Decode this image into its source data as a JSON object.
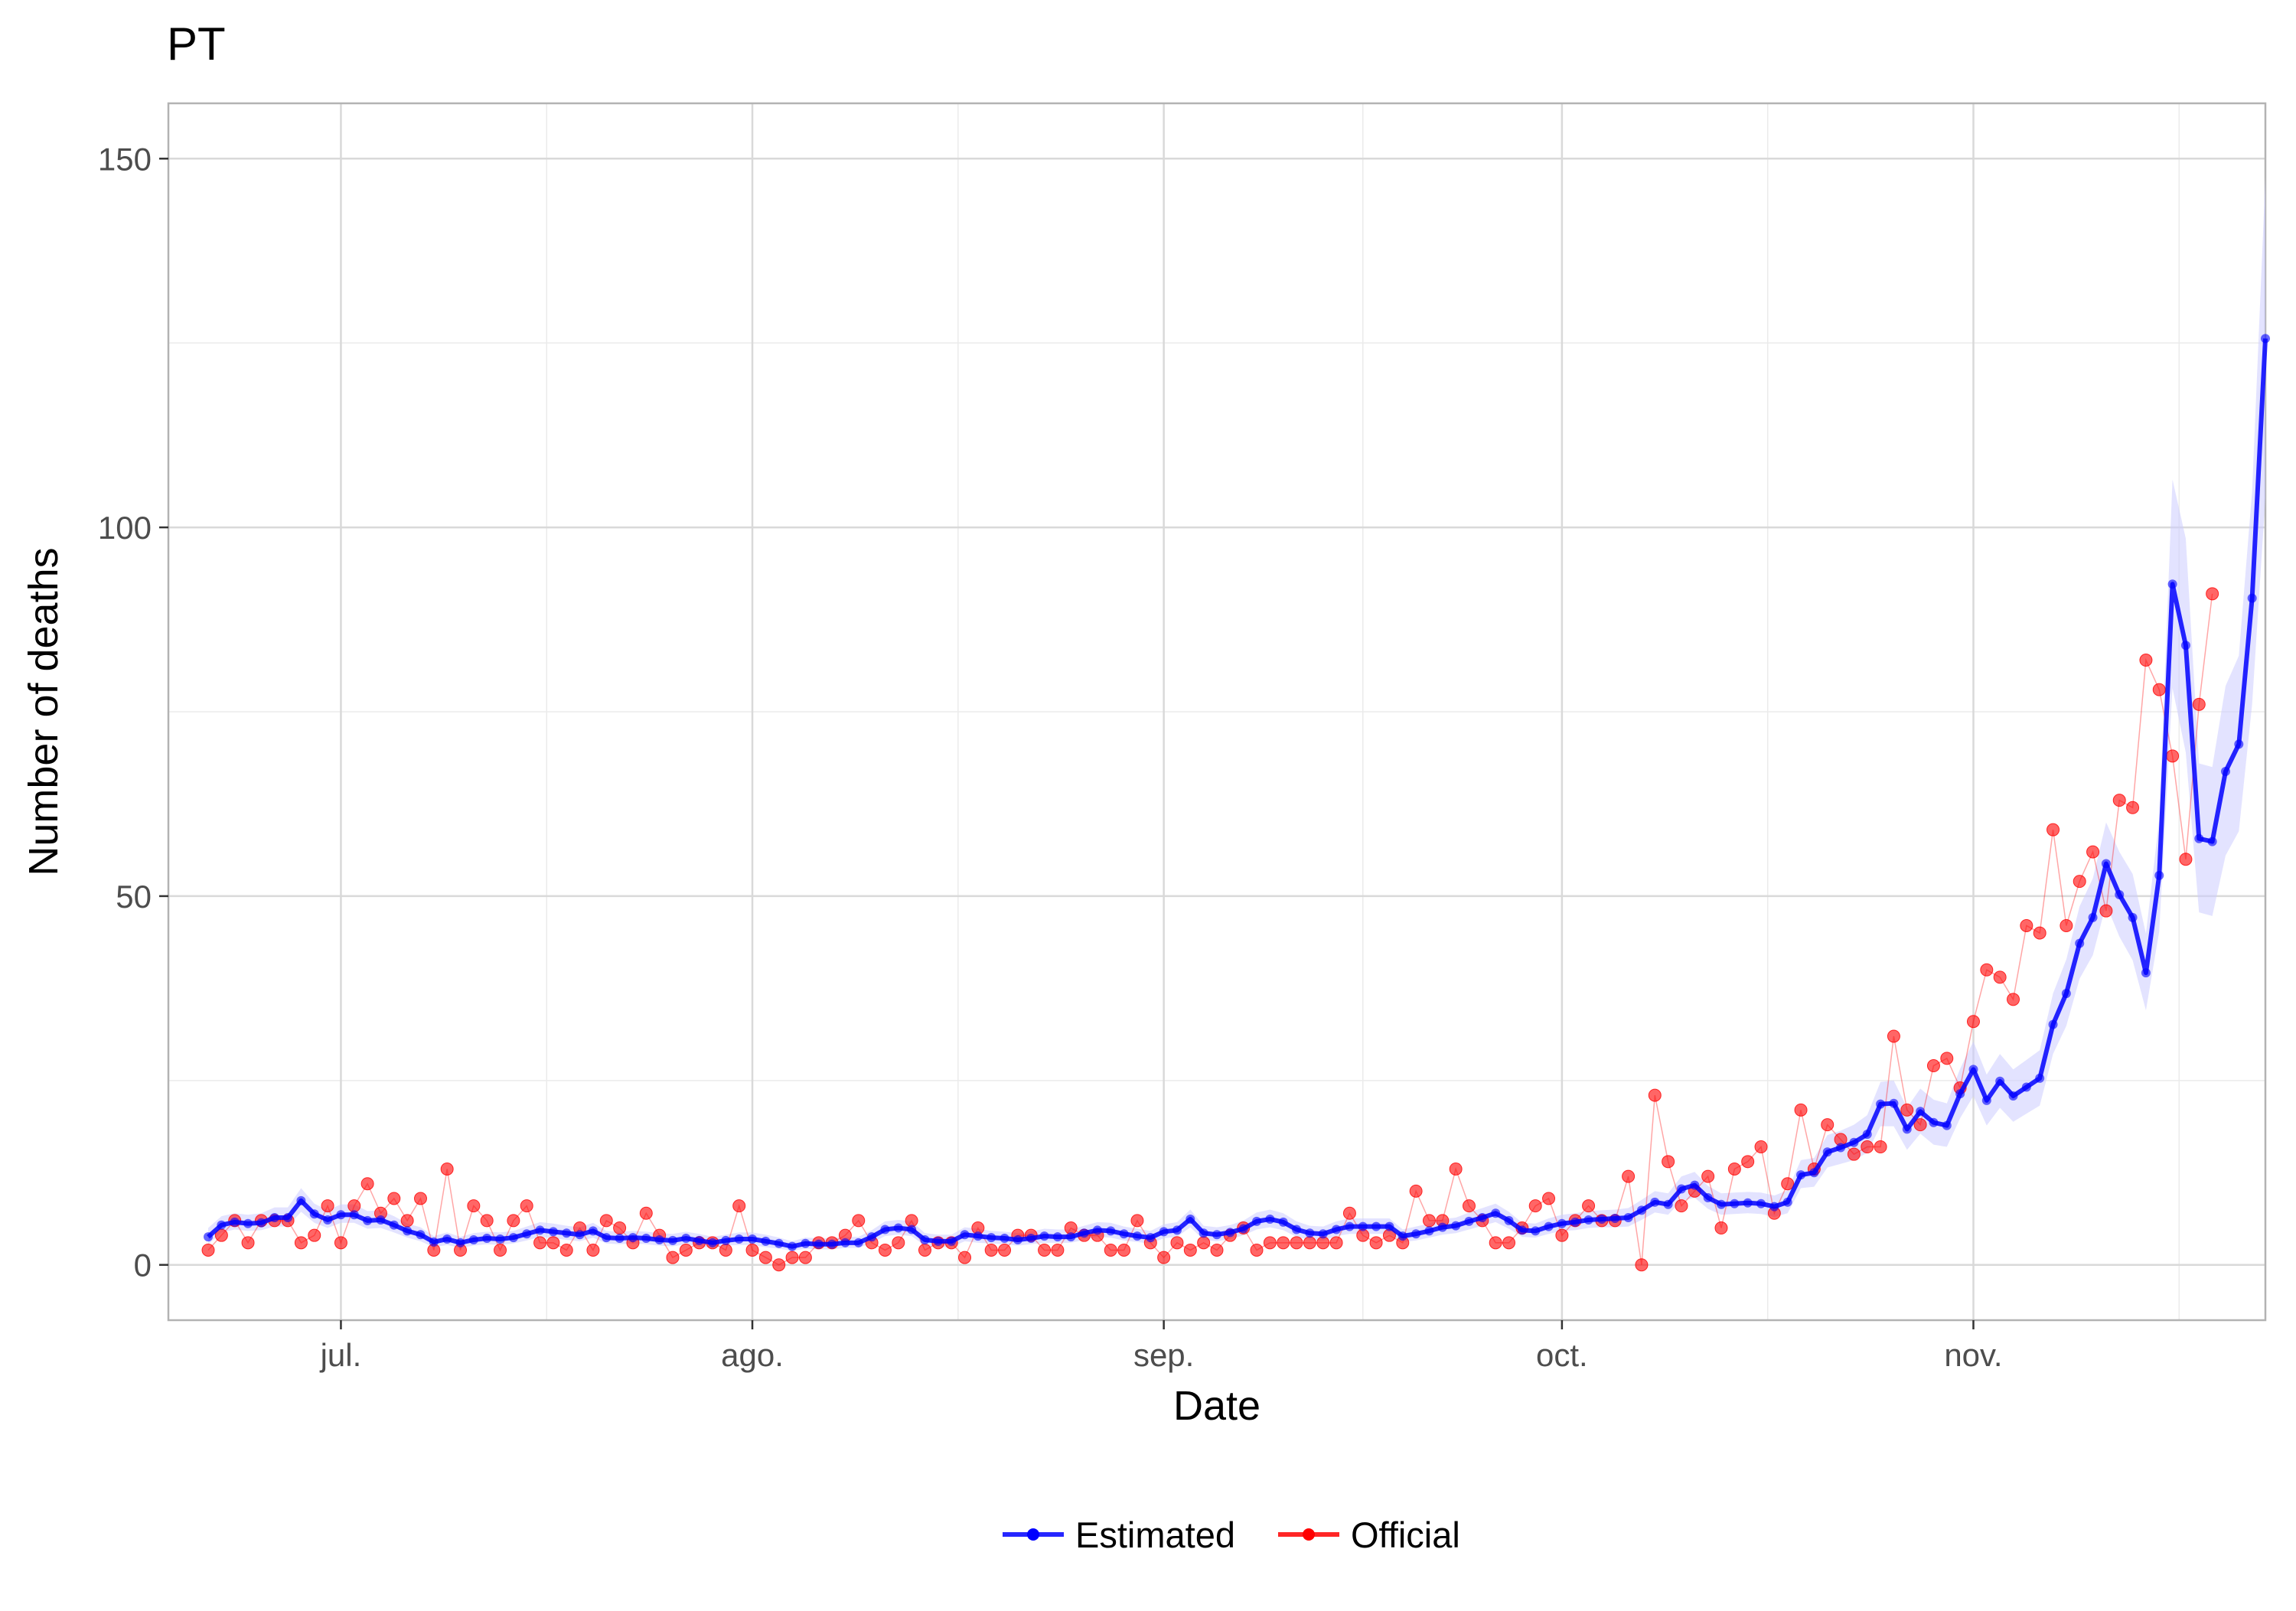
{
  "chart_data": {
    "type": "line",
    "title": "PT",
    "xlabel": "Date",
    "ylabel": "Number of deaths",
    "x_axis_type": "date",
    "x_start": "2020-06-21",
    "xlim": [
      "2020-06-18",
      "2020-11-23"
    ],
    "ylim": [
      -7.5,
      157.5
    ],
    "grid": true,
    "legend_position": "bottom",
    "x_ticks": [
      {
        "date": "2020-07-01",
        "label": "jul."
      },
      {
        "date": "2020-08-01",
        "label": "ago."
      },
      {
        "date": "2020-09-01",
        "label": "sep."
      },
      {
        "date": "2020-10-01",
        "label": "oct."
      },
      {
        "date": "2020-11-01",
        "label": "nov."
      }
    ],
    "y_ticks": [
      0,
      50,
      100,
      150
    ],
    "series": [
      {
        "name": "Estimated",
        "color": "#0000ff",
        "band_color": "#ccccff",
        "values": [
          3.8,
          5.4,
          5.8,
          5.6,
          5.7,
          6.4,
          6.4,
          8.7,
          6.9,
          6.1,
          6.8,
          6.8,
          6.0,
          6.1,
          5.4,
          4.6,
          4.1,
          3.1,
          3.5,
          3.0,
          3.4,
          3.6,
          3.5,
          3.7,
          4.2,
          4.7,
          4.5,
          4.3,
          4.1,
          4.6,
          3.7,
          3.6,
          3.7,
          3.6,
          3.4,
          3.3,
          3.6,
          3.3,
          3.0,
          3.3,
          3.5,
          3.5,
          3.2,
          2.9,
          2.5,
          2.9,
          2.8,
          2.8,
          3.0,
          3.0,
          3.8,
          4.8,
          5.0,
          4.8,
          3.4,
          3.2,
          3.2,
          4.1,
          3.9,
          3.7,
          3.6,
          3.4,
          3.6,
          3.9,
          3.8,
          3.8,
          4.3,
          4.7,
          4.6,
          4.2,
          3.9,
          3.7,
          4.5,
          4.7,
          6.2,
          4.3,
          4.1,
          4.4,
          4.9,
          5.9,
          6.2,
          5.8,
          4.8,
          4.3,
          4.2,
          4.8,
          5.2,
          5.2,
          5.2,
          5.2,
          3.9,
          4.2,
          4.6,
          5.1,
          5.3,
          5.9,
          6.4,
          7.0,
          6.0,
          4.7,
          4.6,
          5.2,
          5.6,
          5.8,
          6.1,
          6.2,
          6.3,
          6.4,
          7.4,
          8.5,
          8.2,
          10.3,
          10.8,
          9.1,
          8.2,
          8.3,
          8.4,
          8.3,
          7.9,
          8.5,
          12.2,
          12.5,
          15.3,
          15.9,
          16.6,
          17.7,
          21.8,
          21.9,
          18.4,
          20.8,
          19.3,
          18.9,
          23.2,
          26.5,
          22.3,
          24.9,
          22.9,
          24.1,
          25.3,
          32.6,
          36.8,
          43.6,
          47.1,
          54.4,
          50.2,
          47.1,
          39.6,
          52.8,
          92.3,
          84.0,
          57.8,
          57.4,
          66.9,
          70.6,
          90.4,
          125.6
        ],
        "lower": [
          2.8,
          4.4,
          4.8,
          4.6,
          4.7,
          5.2,
          5.2,
          7.2,
          5.7,
          5.0,
          5.7,
          5.7,
          4.9,
          5.0,
          4.4,
          3.7,
          3.2,
          2.4,
          2.7,
          2.3,
          2.6,
          2.8,
          2.7,
          2.9,
          3.3,
          3.8,
          3.6,
          3.4,
          3.2,
          3.7,
          2.9,
          2.8,
          2.9,
          2.8,
          2.6,
          2.5,
          2.8,
          2.5,
          2.3,
          2.6,
          2.7,
          2.7,
          2.4,
          2.2,
          1.9,
          2.2,
          2.1,
          2.1,
          2.3,
          2.3,
          3.0,
          3.9,
          4.1,
          3.9,
          2.6,
          2.4,
          2.4,
          3.2,
          3.0,
          2.9,
          2.8,
          2.6,
          2.8,
          3.0,
          3.0,
          3.0,
          3.4,
          3.8,
          3.7,
          3.3,
          3.1,
          2.9,
          3.6,
          3.8,
          5.1,
          3.4,
          3.2,
          3.5,
          4.0,
          4.8,
          5.1,
          4.7,
          3.8,
          3.4,
          3.3,
          3.9,
          4.2,
          4.2,
          4.2,
          4.2,
          3.1,
          3.3,
          3.7,
          4.1,
          4.3,
          4.8,
          5.3,
          5.8,
          4.9,
          3.8,
          3.7,
          4.2,
          4.6,
          4.7,
          5.0,
          5.1,
          5.1,
          5.2,
          6.1,
          7.1,
          6.8,
          8.7,
          9.1,
          7.6,
          6.8,
          6.9,
          7.0,
          6.9,
          6.5,
          7.0,
          10.4,
          10.6,
          13.2,
          13.7,
          14.2,
          15.2,
          18.8,
          18.8,
          15.6,
          17.8,
          16.3,
          16.0,
          19.9,
          22.9,
          18.9,
          21.3,
          19.4,
          20.5,
          21.6,
          28.6,
          32.4,
          38.8,
          42.0,
          48.9,
          44.5,
          41.3,
          34.5,
          45.2,
          78.2,
          69.5,
          47.8,
          47.3,
          55.5,
          58.8,
          76.0,
          104.0
        ],
        "upper": [
          5.0,
          6.6,
          7.0,
          6.8,
          7.0,
          7.8,
          7.8,
          10.4,
          8.3,
          7.4,
          8.2,
          8.2,
          7.3,
          7.4,
          6.6,
          5.6,
          5.1,
          3.9,
          4.4,
          3.8,
          4.3,
          4.5,
          4.4,
          4.6,
          5.2,
          5.8,
          5.6,
          5.3,
          5.1,
          5.7,
          4.6,
          4.5,
          4.6,
          4.5,
          4.3,
          4.2,
          4.5,
          4.2,
          3.8,
          4.1,
          4.4,
          4.4,
          4.1,
          3.7,
          3.2,
          3.7,
          3.6,
          3.6,
          3.8,
          3.8,
          4.7,
          5.9,
          6.1,
          5.9,
          4.3,
          4.1,
          4.1,
          5.1,
          4.9,
          4.6,
          4.5,
          4.3,
          4.5,
          4.9,
          4.8,
          4.8,
          5.3,
          5.8,
          5.7,
          5.2,
          4.9,
          4.6,
          5.5,
          5.8,
          7.5,
          5.3,
          5.1,
          5.4,
          6.0,
          7.1,
          7.5,
          7.0,
          5.9,
          5.3,
          5.2,
          5.9,
          6.3,
          6.3,
          6.3,
          6.3,
          4.8,
          5.2,
          5.6,
          6.2,
          6.4,
          7.1,
          7.7,
          8.3,
          7.2,
          5.7,
          5.6,
          6.3,
          6.8,
          7.0,
          7.3,
          7.4,
          7.5,
          7.7,
          8.8,
          10.0,
          9.7,
          12.0,
          12.6,
          10.7,
          9.7,
          9.8,
          9.9,
          9.8,
          9.4,
          10.1,
          14.2,
          14.5,
          17.6,
          18.2,
          19.0,
          20.3,
          24.8,
          25.0,
          21.3,
          23.9,
          22.4,
          21.9,
          26.6,
          30.3,
          25.8,
          28.6,
          26.5,
          27.8,
          29.1,
          36.8,
          41.4,
          48.6,
          52.4,
          60.0,
          56.0,
          53.0,
          44.9,
          60.4,
          106.5,
          98.5,
          68.0,
          67.5,
          78.5,
          82.6,
          104.9,
          147.4
        ]
      },
      {
        "name": "Official",
        "color": "#ff0000",
        "values": [
          2,
          4,
          6,
          3,
          6,
          6,
          6,
          3,
          4,
          8,
          3,
          8,
          11,
          7,
          9,
          6,
          9,
          2,
          13,
          2,
          8,
          6,
          2,
          6,
          8,
          3,
          3,
          2,
          5,
          2,
          6,
          5,
          3,
          7,
          4,
          1,
          2,
          3,
          3,
          2,
          8,
          2,
          1,
          0,
          1,
          1,
          3,
          3,
          4,
          6,
          3,
          2,
          3,
          6,
          2,
          3,
          3,
          1,
          5,
          2,
          2,
          4,
          4,
          2,
          2,
          5,
          4,
          4,
          2,
          2,
          6,
          3,
          1,
          3,
          2,
          3,
          2,
          4,
          5,
          2,
          3,
          3,
          3,
          3,
          3,
          3,
          7,
          4,
          3,
          4,
          3,
          10,
          6,
          6,
          13,
          8,
          6,
          3,
          3,
          5,
          8,
          9,
          4,
          6,
          8,
          6,
          6,
          12,
          0,
          23,
          14,
          8,
          10,
          12,
          5,
          13,
          14,
          16,
          7,
          11,
          21,
          13,
          19,
          17,
          15,
          16,
          16,
          31,
          21,
          19,
          27,
          28,
          24,
          33,
          40,
          39,
          36,
          46,
          45,
          59,
          46,
          52,
          56,
          48,
          63,
          62,
          82,
          78,
          69,
          55,
          76,
          91
        ]
      }
    ]
  }
}
